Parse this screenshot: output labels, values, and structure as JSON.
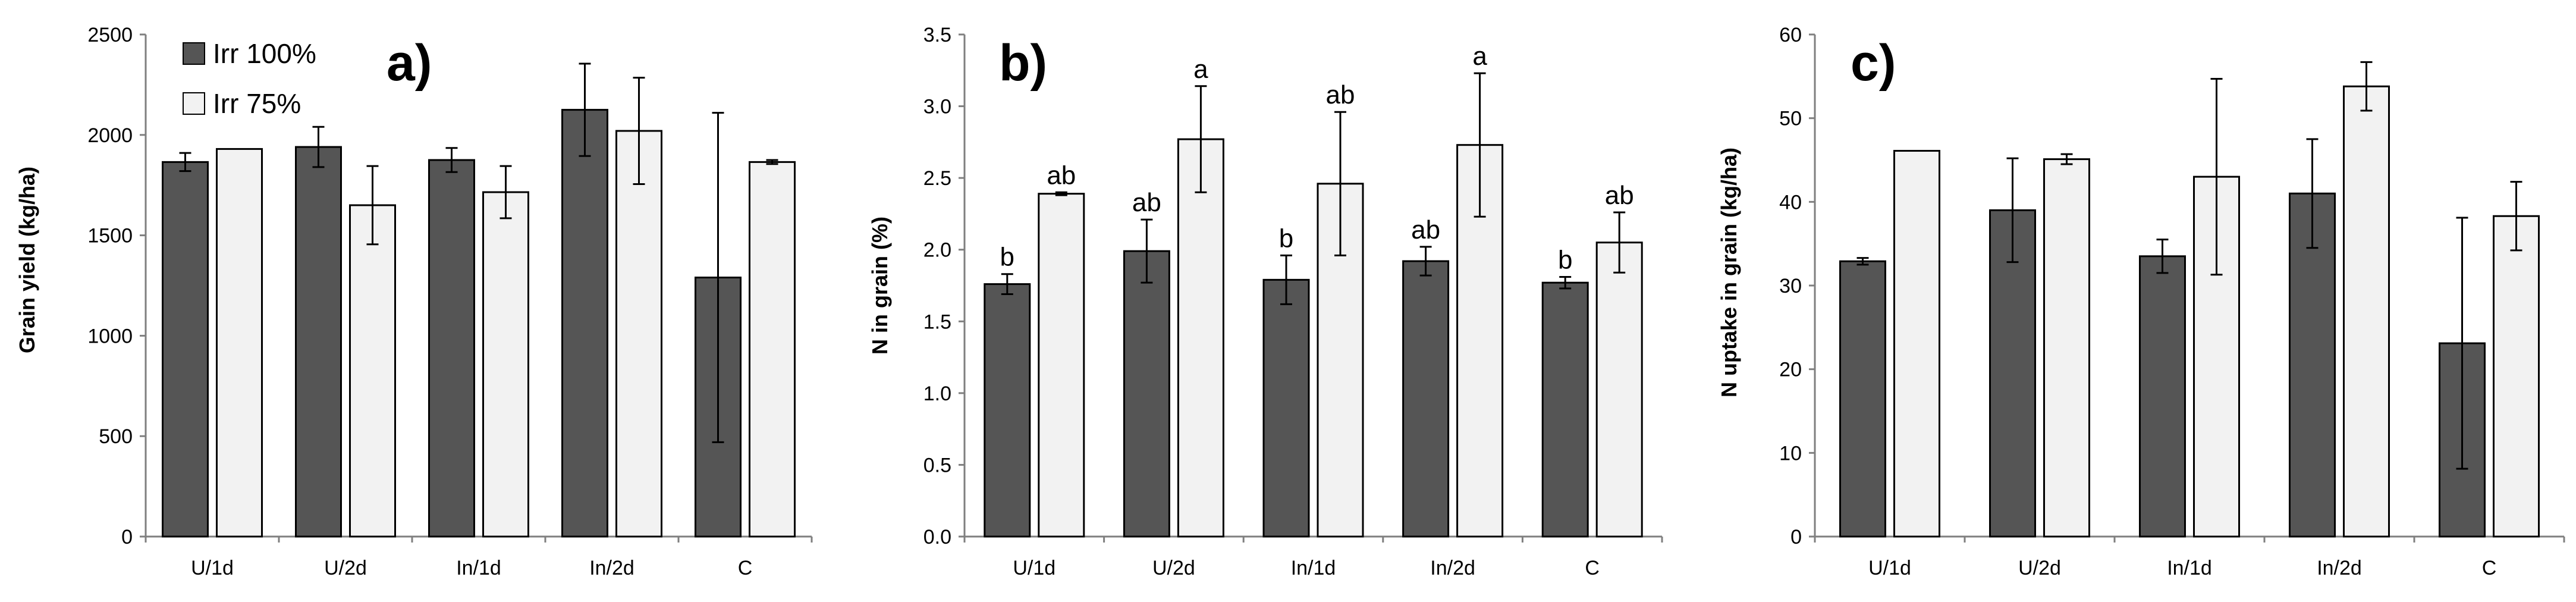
{
  "colors": {
    "irr100": "#555555",
    "irr75": "#f2f2f2",
    "axis": "#7f7f7f",
    "bar_stroke": "#000000"
  },
  "legend": {
    "items": [
      {
        "label": "Irr 100%",
        "color": "#555555"
      },
      {
        "label": "Irr 75%",
        "color": "#f2f2f2"
      }
    ]
  },
  "chart_data": [
    {
      "type": "bar",
      "panel_label": "a)",
      "title": "",
      "xlabel": "",
      "ylabel": "Grain yield (kg/ha)",
      "ylim": [
        0,
        2500
      ],
      "yticks": [
        "0",
        "500",
        "1000",
        "1500",
        "2000",
        "2500"
      ],
      "categories": [
        "U/1d",
        "U/2d",
        "In/1d",
        "In/2d",
        "C"
      ],
      "series": [
        {
          "name": "Irr 100%",
          "values": [
            1865,
            1940,
            1875,
            2125,
            1290
          ],
          "errors": [
            45,
            100,
            60,
            230,
            820
          ],
          "labels": [
            "",
            "",
            "",
            "",
            ""
          ]
        },
        {
          "name": "Irr 75%",
          "values": [
            1930,
            1650,
            1715,
            2020,
            1865
          ],
          "errors": [
            0,
            195,
            130,
            265,
            10
          ],
          "labels": [
            "",
            "",
            "",
            "",
            ""
          ]
        }
      ]
    },
    {
      "type": "bar",
      "panel_label": "b)",
      "title": "",
      "xlabel": "",
      "ylabel": "N in grain (%)",
      "ylim": [
        0,
        3.5
      ],
      "yticks": [
        "0.0",
        "0.5",
        "1.0",
        "1.5",
        "2.0",
        "2.5",
        "3.0",
        "3.5"
      ],
      "categories": [
        "U/1d",
        "U/2d",
        "In/1d",
        "In/2d",
        "C"
      ],
      "series": [
        {
          "name": "Irr 100%",
          "values": [
            1.76,
            1.99,
            1.79,
            1.92,
            1.77
          ],
          "errors": [
            0.07,
            0.22,
            0.17,
            0.1,
            0.04
          ],
          "labels": [
            "b",
            "ab",
            "b",
            "ab",
            "b"
          ]
        },
        {
          "name": "Irr 75%",
          "values": [
            2.39,
            2.77,
            2.46,
            2.73,
            2.05
          ],
          "errors": [
            0.01,
            0.37,
            0.5,
            0.5,
            0.21
          ],
          "labels": [
            "ab",
            "a",
            "ab",
            "a",
            "ab"
          ]
        }
      ]
    },
    {
      "type": "bar",
      "panel_label": "c)",
      "title": "",
      "xlabel": "",
      "ylabel": "N uptake in grain (kg/ha)",
      "ylim": [
        0,
        60
      ],
      "yticks": [
        "0",
        "10",
        "20",
        "30",
        "40",
        "50",
        "60"
      ],
      "categories": [
        "U/1d",
        "U/2d",
        "In/1d",
        "In/2d",
        "C"
      ],
      "series": [
        {
          "name": "Irr 100%",
          "values": [
            32.9,
            39.0,
            33.5,
            41.0,
            23.1
          ],
          "errors": [
            0.4,
            6.2,
            2.0,
            6.5,
            15.0
          ],
          "labels": [
            "",
            "",
            "",
            "",
            ""
          ]
        },
        {
          "name": "Irr 75%",
          "values": [
            46.1,
            45.1,
            43.0,
            53.8,
            38.3
          ],
          "errors": [
            0,
            0.6,
            11.7,
            2.9,
            4.1
          ],
          "labels": [
            "",
            "",
            "",
            "",
            ""
          ]
        }
      ]
    }
  ]
}
